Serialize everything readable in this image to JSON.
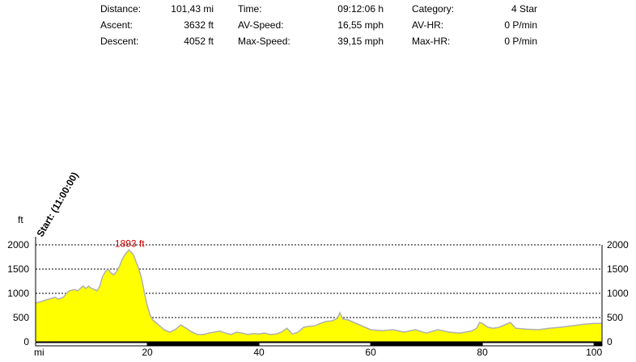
{
  "stats": {
    "distance_label": "Distance:",
    "distance_value": "101,43 mi",
    "ascent_label": "Ascent:",
    "ascent_value": "3632 ft",
    "descent_label": "Descent:",
    "descent_value": "4052 ft",
    "time_label": "Time:",
    "time_value": "09:12:06 h",
    "avspeed_label": "AV-Speed:",
    "avspeed_value": "16,55 mph",
    "maxspeed_label": "Max-Speed:",
    "maxspeed_value": "39,15 mph",
    "category_label": "Category:",
    "category_value": "4 Star",
    "avhr_label": "AV-HR:",
    "avhr_value": "0 P/min",
    "maxhr_label": "Max-HR:",
    "maxhr_value": "0 P/min"
  },
  "colors": {
    "fill": "#ffff00",
    "outline": "#b0b0b0",
    "peak_label": "#cc0000",
    "axis": "#000000"
  },
  "chart_data": {
    "type": "area",
    "ylabel": "ft",
    "xlabel": "mi",
    "xlim": [
      0,
      101.43
    ],
    "ylim": [
      0,
      2000
    ],
    "yticks": [
      0,
      500,
      1000,
      1500,
      2000
    ],
    "xticks": [
      20,
      40,
      60,
      80,
      100
    ],
    "grid": "dashed horizontal",
    "start_label": "Start: (11:00:00)",
    "peak_label": "1893 ft",
    "peak_point": [
      16.7,
      1893
    ],
    "series": [
      {
        "x": [
          0,
          1,
          2,
          3,
          3.5,
          4,
          5,
          5.5,
          6,
          7,
          7.5,
          8,
          8.5,
          9,
          9.5,
          10,
          10.5,
          11,
          11.5,
          12,
          12.5,
          13,
          13.5,
          14,
          14.5,
          15,
          15.5,
          16,
          16.7,
          17.5,
          18,
          18.5,
          19,
          19.5,
          20,
          20.5,
          21,
          21.5,
          22,
          23,
          24,
          25,
          26,
          27,
          28,
          29,
          30,
          31,
          32,
          33,
          34,
          35,
          36,
          37,
          38,
          39,
          40,
          41,
          42,
          43,
          44,
          45,
          46,
          47,
          48,
          49,
          50,
          51,
          52,
          53,
          54,
          54.5,
          55,
          56,
          57,
          58,
          59,
          60,
          62,
          64,
          66,
          68,
          70,
          72,
          74,
          76,
          78,
          79,
          79.5,
          80,
          81,
          82,
          83,
          84,
          85,
          86,
          88,
          90,
          92,
          94,
          96,
          98,
          100,
          101.43
        ],
        "y": [
          800,
          830,
          870,
          900,
          920,
          880,
          920,
          1000,
          1050,
          1080,
          1050,
          1100,
          1150,
          1100,
          1150,
          1100,
          1080,
          1050,
          1150,
          1350,
          1450,
          1500,
          1420,
          1380,
          1450,
          1550,
          1700,
          1800,
          1893,
          1800,
          1650,
          1500,
          1300,
          1000,
          750,
          550,
          450,
          400,
          350,
          250,
          200,
          250,
          350,
          280,
          200,
          150,
          150,
          180,
          200,
          220,
          180,
          150,
          200,
          180,
          150,
          170,
          160,
          180,
          150,
          160,
          200,
          280,
          160,
          200,
          300,
          320,
          330,
          380,
          420,
          430,
          480,
          600,
          470,
          450,
          400,
          350,
          300,
          250,
          230,
          250,
          200,
          250,
          180,
          250,
          200,
          180,
          220,
          280,
          400,
          380,
          300,
          280,
          300,
          350,
          400,
          280,
          260,
          250,
          280,
          300,
          330,
          360,
          380,
          380
        ]
      }
    ]
  }
}
